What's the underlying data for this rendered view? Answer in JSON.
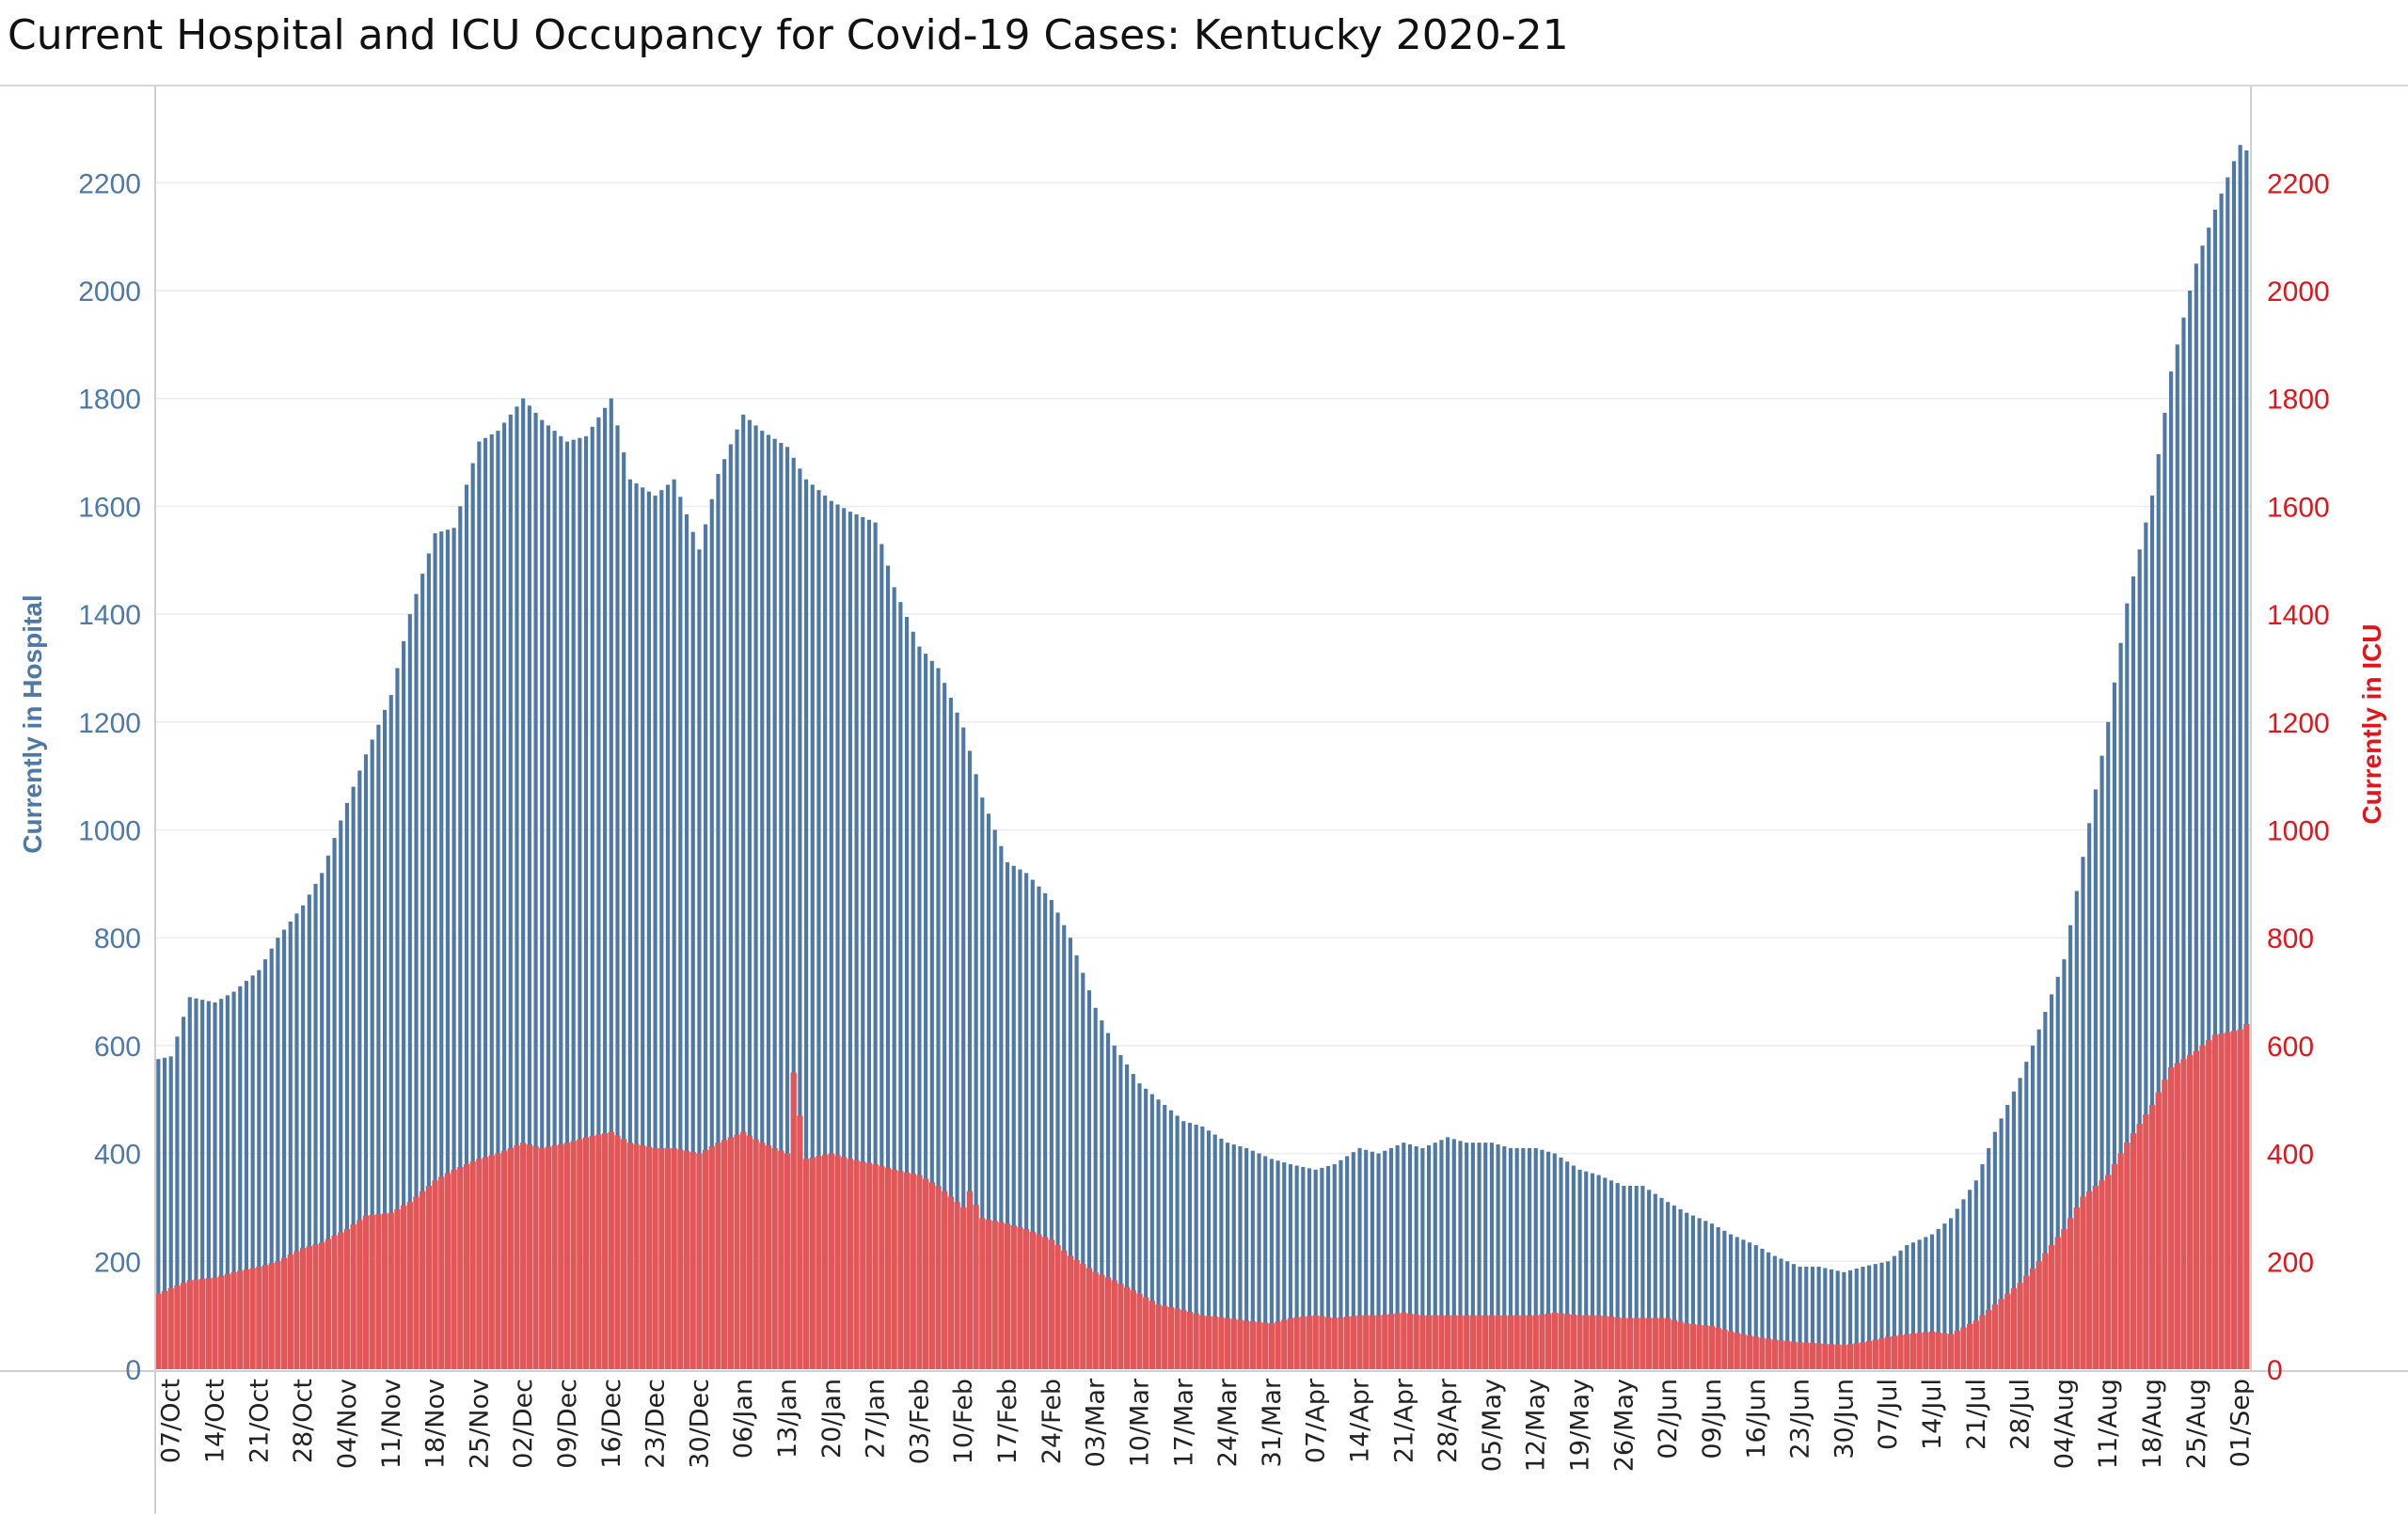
{
  "chart_data": {
    "type": "bar",
    "title": "Current Hospital and ICU Occupancy for Covid-19 Cases:  Kentucky 2020-21",
    "ylabel_left": "Currently in Hospital",
    "ylabel_right": "Currently in ICU",
    "ylim": [
      0,
      2400
    ],
    "y_ticks": [
      0,
      200,
      400,
      600,
      800,
      1000,
      1200,
      1400,
      1600,
      1800,
      2000,
      2200
    ],
    "grid": true,
    "x_start": "2020-10-05",
    "x_end": "2021-09-02",
    "x_ticks": [
      "07/Oct",
      "14/Oct",
      "21/Oct",
      "28/Oct",
      "04/Nov",
      "11/Nov",
      "18/Nov",
      "25/Nov",
      "02/Dec",
      "09/Dec",
      "16/Dec",
      "23/Dec",
      "30/Dec",
      "06/Jan",
      "13/Jan",
      "20/Jan",
      "27/Jan",
      "03/Feb",
      "10/Feb",
      "17/Feb",
      "24/Feb",
      "03/Mar",
      "10/Mar",
      "17/Mar",
      "24/Mar",
      "31/Mar",
      "07/Apr",
      "14/Apr",
      "21/Apr",
      "28/Apr",
      "05/May",
      "12/May",
      "19/May",
      "26/May",
      "02/Jun",
      "09/Jun",
      "16/Jun",
      "23/Jun",
      "30/Jun",
      "07/Jul",
      "14/Jul",
      "21/Jul",
      "28/Jul",
      "04/Aug",
      "11/Aug",
      "18/Aug",
      "25/Aug",
      "01/Sep"
    ],
    "colors": {
      "hospital": "#4e79a7",
      "icu": "#e15759"
    },
    "series": [
      {
        "name": "Currently in Hospital",
        "axis": "left",
        "x": [
          "2020-10-05",
          "2020-10-07",
          "2020-10-10",
          "2020-10-14",
          "2020-10-17",
          "2020-10-21",
          "2020-10-24",
          "2020-10-28",
          "2020-10-31",
          "2020-11-04",
          "2020-11-07",
          "2020-11-11",
          "2020-11-14",
          "2020-11-18",
          "2020-11-21",
          "2020-11-25",
          "2020-11-28",
          "2020-12-02",
          "2020-12-05",
          "2020-12-09",
          "2020-12-12",
          "2020-12-16",
          "2020-12-19",
          "2020-12-23",
          "2020-12-26",
          "2020-12-30",
          "2021-01-02",
          "2021-01-06",
          "2021-01-09",
          "2021-01-13",
          "2021-01-16",
          "2021-01-20",
          "2021-01-23",
          "2021-01-27",
          "2021-01-30",
          "2021-02-03",
          "2021-02-06",
          "2021-02-10",
          "2021-02-13",
          "2021-02-17",
          "2021-02-20",
          "2021-02-24",
          "2021-02-27",
          "2021-03-03",
          "2021-03-06",
          "2021-03-10",
          "2021-03-13",
          "2021-03-17",
          "2021-03-20",
          "2021-03-24",
          "2021-03-27",
          "2021-03-31",
          "2021-04-03",
          "2021-04-07",
          "2021-04-10",
          "2021-04-14",
          "2021-04-17",
          "2021-04-21",
          "2021-04-24",
          "2021-04-28",
          "2021-05-01",
          "2021-05-05",
          "2021-05-08",
          "2021-05-12",
          "2021-05-15",
          "2021-05-19",
          "2021-05-22",
          "2021-05-26",
          "2021-05-29",
          "2021-06-02",
          "2021-06-05",
          "2021-06-09",
          "2021-06-12",
          "2021-06-16",
          "2021-06-19",
          "2021-06-23",
          "2021-06-26",
          "2021-06-30",
          "2021-07-03",
          "2021-07-07",
          "2021-07-10",
          "2021-07-14",
          "2021-07-17",
          "2021-07-21",
          "2021-07-24",
          "2021-07-28",
          "2021-07-31",
          "2021-08-04",
          "2021-08-07",
          "2021-08-11",
          "2021-08-14",
          "2021-08-18",
          "2021-08-21",
          "2021-08-25",
          "2021-08-28",
          "2021-09-01",
          "2021-09-02"
        ],
        "values": [
          575,
          580,
          690,
          680,
          700,
          740,
          800,
          860,
          920,
          1050,
          1140,
          1250,
          1400,
          1550,
          1560,
          1720,
          1740,
          1800,
          1760,
          1720,
          1730,
          1800,
          1650,
          1620,
          1650,
          1520,
          1660,
          1770,
          1740,
          1710,
          1650,
          1610,
          1590,
          1570,
          1450,
          1340,
          1300,
          1190,
          1060,
          940,
          920,
          870,
          800,
          670,
          600,
          530,
          500,
          460,
          450,
          420,
          410,
          390,
          380,
          370,
          380,
          410,
          400,
          420,
          410,
          430,
          420,
          420,
          410,
          410,
          400,
          370,
          360,
          340,
          340,
          310,
          290,
          270,
          250,
          230,
          210,
          190,
          190,
          180,
          190,
          200,
          230,
          250,
          280,
          350,
          440,
          540,
          630,
          760,
          950,
          1200,
          1420,
          1620,
          1850,
          2050,
          2150,
          2270,
          2260
        ]
      },
      {
        "name": "Currently in ICU",
        "axis": "right",
        "x": [
          "2020-10-05",
          "2020-10-07",
          "2020-10-10",
          "2020-10-14",
          "2020-10-17",
          "2020-10-21",
          "2020-10-24",
          "2020-10-28",
          "2020-10-31",
          "2020-11-04",
          "2020-11-07",
          "2020-11-11",
          "2020-11-14",
          "2020-11-18",
          "2020-11-21",
          "2020-11-25",
          "2020-11-28",
          "2020-12-02",
          "2020-12-05",
          "2020-12-09",
          "2020-12-12",
          "2020-12-16",
          "2020-12-19",
          "2020-12-23",
          "2020-12-26",
          "2020-12-30",
          "2021-01-02",
          "2021-01-06",
          "2021-01-09",
          "2021-01-13",
          "2021-01-14",
          "2021-01-16",
          "2021-01-20",
          "2021-01-23",
          "2021-01-27",
          "2021-01-30",
          "2021-02-03",
          "2021-02-06",
          "2021-02-10",
          "2021-02-11",
          "2021-02-13",
          "2021-02-17",
          "2021-02-20",
          "2021-02-24",
          "2021-02-27",
          "2021-03-03",
          "2021-03-06",
          "2021-03-10",
          "2021-03-13",
          "2021-03-17",
          "2021-03-20",
          "2021-03-24",
          "2021-03-27",
          "2021-03-31",
          "2021-04-03",
          "2021-04-07",
          "2021-04-10",
          "2021-04-14",
          "2021-04-17",
          "2021-04-21",
          "2021-04-24",
          "2021-04-28",
          "2021-05-01",
          "2021-05-05",
          "2021-05-08",
          "2021-05-12",
          "2021-05-15",
          "2021-05-19",
          "2021-05-22",
          "2021-05-26",
          "2021-05-29",
          "2021-06-02",
          "2021-06-05",
          "2021-06-09",
          "2021-06-12",
          "2021-06-16",
          "2021-06-19",
          "2021-06-23",
          "2021-06-26",
          "2021-06-30",
          "2021-07-03",
          "2021-07-07",
          "2021-07-10",
          "2021-07-14",
          "2021-07-17",
          "2021-07-21",
          "2021-07-24",
          "2021-07-28",
          "2021-07-31",
          "2021-08-04",
          "2021-08-07",
          "2021-08-11",
          "2021-08-14",
          "2021-08-18",
          "2021-08-21",
          "2021-08-25",
          "2021-08-28",
          "2021-09-01",
          "2021-09-02"
        ],
        "values": [
          140,
          150,
          165,
          170,
          180,
          190,
          200,
          225,
          235,
          260,
          285,
          290,
          310,
          350,
          370,
          390,
          400,
          420,
          410,
          420,
          430,
          440,
          420,
          410,
          410,
          400,
          420,
          440,
          420,
          400,
          550,
          390,
          400,
          390,
          380,
          370,
          360,
          340,
          300,
          330,
          280,
          270,
          260,
          240,
          210,
          180,
          165,
          140,
          120,
          110,
          100,
          95,
          90,
          85,
          95,
          100,
          95,
          100,
          100,
          105,
          100,
          100,
          100,
          100,
          100,
          100,
          105,
          100,
          100,
          95,
          95,
          95,
          85,
          80,
          70,
          60,
          55,
          50,
          48,
          45,
          50,
          60,
          65,
          70,
          65,
          90,
          120,
          160,
          200,
          260,
          320,
          360,
          420,
          490,
          560,
          590,
          620,
          630,
          640
        ]
      }
    ]
  }
}
